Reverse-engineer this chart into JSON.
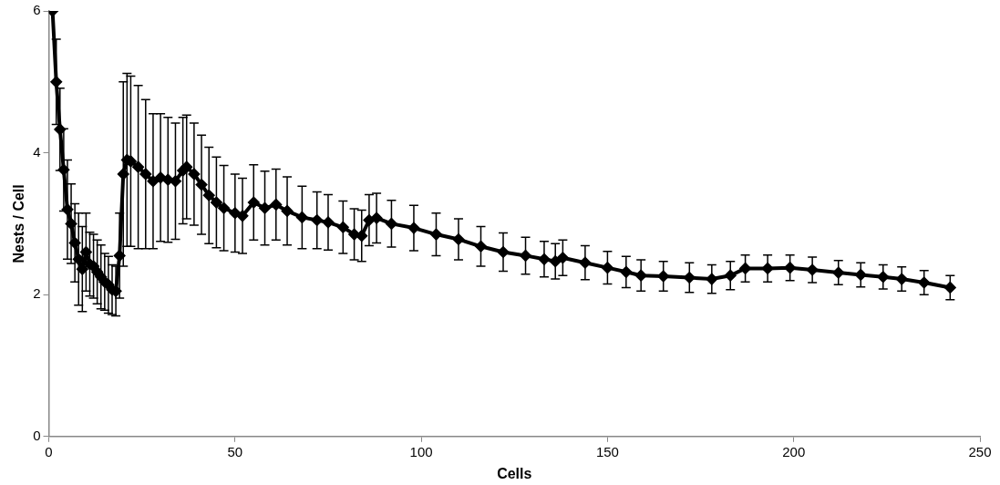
{
  "chart_data": {
    "type": "line",
    "xlabel": "Cells",
    "ylabel": "Nests / Cell",
    "xlim": [
      0,
      250
    ],
    "xticks": [
      0,
      50,
      100,
      150,
      200,
      250
    ],
    "ylim": [
      0,
      6
    ],
    "yticks": [
      0,
      2,
      4,
      6
    ],
    "grid": false,
    "legend": false,
    "marker": "diamond",
    "line_style": "solid",
    "x": [
      1,
      2,
      3,
      4,
      5,
      6,
      7,
      8,
      9,
      10,
      11,
      12,
      13,
      14,
      15,
      16,
      17,
      18,
      19,
      20,
      21,
      22,
      24,
      26,
      28,
      30,
      32,
      34,
      36,
      37,
      39,
      41,
      43,
      45,
      47,
      50,
      52,
      55,
      58,
      61,
      64,
      68,
      72,
      75,
      79,
      82,
      84,
      86,
      88,
      92,
      98,
      104,
      110,
      116,
      122,
      128,
      133,
      136,
      138,
      144,
      150,
      155,
      159,
      165,
      172,
      178,
      183,
      187,
      193,
      199,
      205,
      212,
      218,
      224,
      229,
      235,
      242
    ],
    "series": [
      {
        "color": "#000000",
        "values": [
          6,
          5.0,
          4.33,
          3.76,
          3.2,
          3.0,
          2.73,
          2.5,
          2.36,
          2.6,
          2.43,
          2.4,
          2.32,
          2.25,
          2.18,
          2.14,
          2.07,
          2.05,
          2.55,
          3.7,
          3.9,
          3.88,
          3.8,
          3.7,
          3.6,
          3.65,
          3.62,
          3.6,
          3.75,
          3.8,
          3.7,
          3.55,
          3.4,
          3.3,
          3.22,
          3.15,
          3.11,
          3.3,
          3.22,
          3.27,
          3.18,
          3.09,
          3.05,
          3.02,
          2.95,
          2.85,
          2.83,
          3.05,
          3.08,
          3.0,
          2.94,
          2.85,
          2.78,
          2.68,
          2.6,
          2.55,
          2.5,
          2.47,
          2.52,
          2.45,
          2.38,
          2.32,
          2.27,
          2.26,
          2.24,
          2.22,
          2.27,
          2.37,
          2.37,
          2.38,
          2.35,
          2.31,
          2.28,
          2.25,
          2.22,
          2.17,
          2.1
        ],
        "errors": [
          null,
          0.6,
          0.58,
          0.58,
          0.7,
          0.56,
          0.55,
          0.65,
          0.6,
          0.55,
          0.45,
          0.45,
          0.45,
          0.45,
          0.4,
          0.4,
          0.35,
          0.35,
          0.6,
          1.3,
          1.22,
          1.2,
          1.15,
          1.05,
          0.95,
          0.9,
          0.88,
          0.82,
          0.75,
          0.73,
          0.72,
          0.7,
          0.68,
          0.64,
          0.6,
          0.55,
          0.53,
          0.53,
          0.52,
          0.5,
          0.48,
          0.44,
          0.4,
          0.39,
          0.37,
          0.36,
          0.36,
          0.36,
          0.35,
          0.33,
          0.32,
          0.3,
          0.29,
          0.28,
          0.27,
          0.26,
          0.25,
          0.25,
          0.25,
          0.24,
          0.23,
          0.22,
          0.22,
          0.21,
          0.21,
          0.2,
          0.2,
          0.19,
          0.19,
          0.18,
          0.18,
          0.17,
          0.17,
          0.17,
          0.17,
          0.17,
          0.17
        ]
      }
    ]
  }
}
